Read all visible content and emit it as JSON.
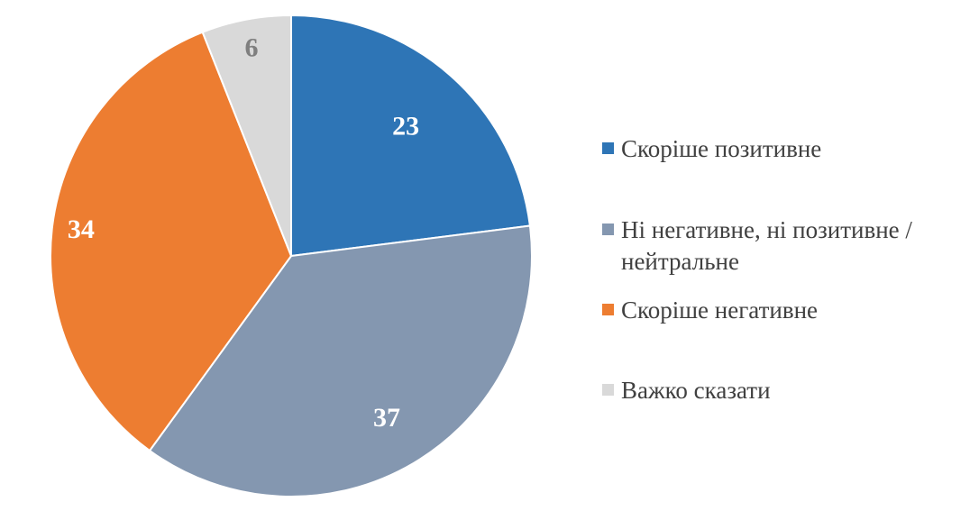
{
  "chart_data": {
    "type": "pie",
    "start_angle_deg": 0,
    "direction": "clockwise",
    "legend_position": "right",
    "slices": [
      {
        "label": "Скоріше позитивне",
        "value": 23,
        "color": "#2E75B6",
        "label_color": "#FFFFFF"
      },
      {
        "label": "Ні негативне, ні позитивне / нейтральне",
        "value": 37,
        "color": "#8497B0",
        "label_color": "#FFFFFF"
      },
      {
        "label": "Скоріше негативне",
        "value": 34,
        "color": "#ED7D31",
        "label_color": "#FFFFFF"
      },
      {
        "label": "Важко сказати",
        "value": 6,
        "color": "#D9D9D9",
        "label_color": "#7F7F7F"
      }
    ]
  },
  "legend": {
    "items": [
      {
        "label": "Скоріше позитивне",
        "color": "#2E75B6"
      },
      {
        "label": "Ні негативне, ні позитивне / нейтральне",
        "color": "#8497B0"
      },
      {
        "label": "Скоріше негативне",
        "color": "#ED7D31"
      },
      {
        "label": "Важко сказати",
        "color": "#D9D9D9"
      }
    ]
  }
}
